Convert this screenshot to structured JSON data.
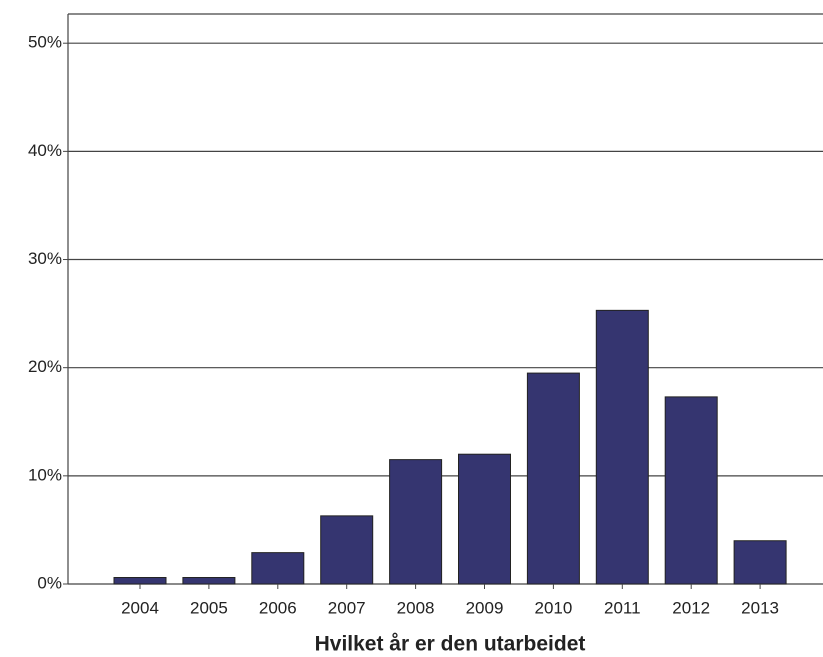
{
  "chart_data": {
    "type": "bar",
    "x_label": "Hvilket år er den utarbeidet",
    "categories": [
      "2004",
      "2005",
      "2006",
      "2007",
      "2008",
      "2009",
      "2010",
      "2011",
      "2012",
      "2013"
    ],
    "values": [
      0.6,
      0.6,
      2.9,
      6.3,
      11.5,
      12.0,
      19.5,
      25.3,
      17.3,
      4.0
    ],
    "color": "#353570",
    "ylim": [
      0,
      52.7
    ],
    "yticks": [
      {
        "value": 0,
        "label": "0%"
      },
      {
        "value": 10,
        "label": "10%"
      },
      {
        "value": 20,
        "label": "20%"
      },
      {
        "value": 30,
        "label": "30%"
      },
      {
        "value": 40,
        "label": "40%"
      },
      {
        "value": 50,
        "label": "50%"
      }
    ],
    "grid": true
  }
}
